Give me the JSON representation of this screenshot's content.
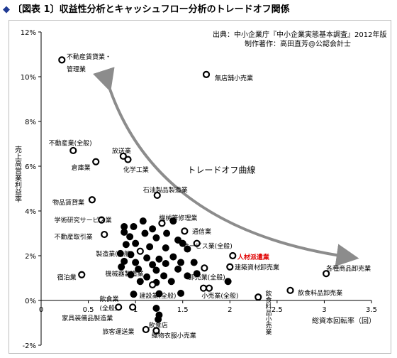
{
  "heading": {
    "marker": "◆",
    "text": "〔図表 1〕収益性分析とキャッシュフロー分析のトレードオフ関係"
  },
  "source": {
    "line1": "出典：中小企業庁『中小企業実態基本調査』2012年版",
    "line2": "制作著作：高田直芳@公認会計士"
  },
  "chart_data": {
    "type": "scatter",
    "title": "〔図表 1〕収益性分析とキャッシュフロー分析のトレードオフ関係",
    "xlabel": "総資本回転率（回）",
    "ylabel": "売上高営業利益率",
    "xlim": [
      0,
      3.5
    ],
    "ylim": [
      -2,
      12
    ],
    "xticks": [
      {
        "v": 0,
        "label": "0"
      },
      {
        "v": 0.5,
        "label": "0.5"
      },
      {
        "v": 1,
        "label": "1"
      },
      {
        "v": 1.5,
        "label": "1.5"
      },
      {
        "v": 2,
        "label": "2"
      },
      {
        "v": 2.5,
        "label": "2.5"
      },
      {
        "v": 3,
        "label": "3"
      },
      {
        "v": 3.5,
        "label": "3.5"
      }
    ],
    "yticks": [
      {
        "v": -2,
        "label": "-2%"
      },
      {
        "v": 0,
        "label": "0%"
      },
      {
        "v": 2,
        "label": "2%"
      },
      {
        "v": 4,
        "label": "4%"
      },
      {
        "v": 6,
        "label": "6%"
      },
      {
        "v": 8,
        "label": "8%"
      },
      {
        "v": 10,
        "label": "10%"
      },
      {
        "v": 12,
        "label": "12%"
      }
    ],
    "grid": false,
    "trend_label": "トレードオフ曲線",
    "trend_color": "#8c8c8c",
    "open_points": [
      {
        "x": 0.22,
        "y": 10.75
      },
      {
        "x": 1.75,
        "y": 10.1
      },
      {
        "x": 0.34,
        "y": 6.7
      },
      {
        "x": 0.58,
        "y": 6.2
      },
      {
        "x": 0.87,
        "y": 6.45
      },
      {
        "x": 0.92,
        "y": 6.3
      },
      {
        "x": 0.54,
        "y": 4.5
      },
      {
        "x": 1.23,
        "y": 4.7
      },
      {
        "x": 0.64,
        "y": 3.6
      },
      {
        "x": 1.28,
        "y": 3.45
      },
      {
        "x": 0.67,
        "y": 2.95
      },
      {
        "x": 1.52,
        "y": 3.1
      },
      {
        "x": 1.05,
        "y": 2.2
      },
      {
        "x": 1.65,
        "y": 2.55
      },
      {
        "x": 2.03,
        "y": 2.0
      },
      {
        "x": 0.43,
        "y": 1.15
      },
      {
        "x": 1.73,
        "y": 1.45
      },
      {
        "x": 2.0,
        "y": 1.5
      },
      {
        "x": 3.02,
        "y": 1.2
      },
      {
        "x": 1.18,
        "y": 0.7
      },
      {
        "x": 1.72,
        "y": 0.55
      },
      {
        "x": 1.78,
        "y": 0.55
      },
      {
        "x": 2.64,
        "y": 0.45
      },
      {
        "x": 2.3,
        "y": 0.15
      },
      {
        "x": 0.82,
        "y": -0.3
      },
      {
        "x": 0.97,
        "y": -0.3
      },
      {
        "x": 1.22,
        "y": -1.35
      },
      {
        "x": 1.11,
        "y": -1.3
      }
    ],
    "filled_points": [
      {
        "x": 1.08,
        "y": 3.55
      },
      {
        "x": 1.4,
        "y": 3.55
      },
      {
        "x": 0.88,
        "y": 3.3
      },
      {
        "x": 0.98,
        "y": 3.3
      },
      {
        "x": 1.18,
        "y": 3.2
      },
      {
        "x": 0.88,
        "y": 3.05
      },
      {
        "x": 1.1,
        "y": 3.0
      },
      {
        "x": 1.33,
        "y": 3.0
      },
      {
        "x": 0.94,
        "y": 2.85
      },
      {
        "x": 1.22,
        "y": 2.8
      },
      {
        "x": 1.45,
        "y": 2.7
      },
      {
        "x": 1.5,
        "y": 2.55
      },
      {
        "x": 0.9,
        "y": 2.5
      },
      {
        "x": 1.0,
        "y": 2.55
      },
      {
        "x": 1.15,
        "y": 2.4
      },
      {
        "x": 1.32,
        "y": 2.35
      },
      {
        "x": 1.55,
        "y": 2.3
      },
      {
        "x": 0.84,
        "y": 2.1
      },
      {
        "x": 0.95,
        "y": 2.05
      },
      {
        "x": 1.12,
        "y": 1.9
      },
      {
        "x": 1.25,
        "y": 1.85
      },
      {
        "x": 1.4,
        "y": 1.95
      },
      {
        "x": 0.88,
        "y": 1.75
      },
      {
        "x": 1.0,
        "y": 1.7
      },
      {
        "x": 1.18,
        "y": 1.6
      },
      {
        "x": 1.32,
        "y": 1.65
      },
      {
        "x": 1.48,
        "y": 1.7
      },
      {
        "x": 1.62,
        "y": 1.7
      },
      {
        "x": 0.85,
        "y": 1.5
      },
      {
        "x": 1.03,
        "y": 1.4
      },
      {
        "x": 1.22,
        "y": 1.35
      },
      {
        "x": 1.45,
        "y": 1.4
      },
      {
        "x": 0.95,
        "y": 1.15
      },
      {
        "x": 1.12,
        "y": 1.05
      },
      {
        "x": 1.3,
        "y": 1.1
      },
      {
        "x": 1.55,
        "y": 1.1
      },
      {
        "x": 1.65,
        "y": 1.2
      },
      {
        "x": 1.05,
        "y": 0.85
      },
      {
        "x": 1.22,
        "y": 0.8
      },
      {
        "x": 1.38,
        "y": 0.85
      },
      {
        "x": 1.98,
        "y": 0.85
      },
      {
        "x": 0.98,
        "y": 0.28
      },
      {
        "x": 1.25,
        "y": 0.3
      },
      {
        "x": 1.48,
        "y": 0.32
      },
      {
        "x": 1.22,
        "y": -0.35
      },
      {
        "x": 1.25,
        "y": -0.65
      },
      {
        "x": 1.24,
        "y": -0.85
      }
    ],
    "labels": [
      {
        "text": "不動産賃貸業・",
        "x": 0.27,
        "y": 10.9,
        "anchor": "start"
      },
      {
        "text": "管理業",
        "x": 0.27,
        "y": 10.35,
        "anchor": "start"
      },
      {
        "text": "無店舗小売業",
        "x": 1.84,
        "y": 9.95,
        "anchor": "start"
      },
      {
        "text": "不動産業(全般)",
        "x": 0.08,
        "y": 7.05,
        "anchor": "start"
      },
      {
        "text": "放送業",
        "x": 0.75,
        "y": 6.7,
        "anchor": "start"
      },
      {
        "text": "倉庫業",
        "x": 0.32,
        "y": 5.95,
        "anchor": "start"
      },
      {
        "text": "化学工業",
        "x": 0.87,
        "y": 5.85,
        "anchor": "start"
      },
      {
        "text": "石油製品製造業",
        "x": 1.08,
        "y": 4.95,
        "anchor": "start"
      },
      {
        "text": "物品賃貸業",
        "x": 0.12,
        "y": 4.4,
        "anchor": "start"
      },
      {
        "text": "学術研究サービス業",
        "x": 0.14,
        "y": 3.6,
        "anchor": "start"
      },
      {
        "text": "機械等修理業",
        "x": 1.25,
        "y": 3.7,
        "anchor": "start"
      },
      {
        "text": "通信業",
        "x": 1.6,
        "y": 3.1,
        "anchor": "start"
      },
      {
        "text": "不動産取引業",
        "x": 0.14,
        "y": 2.85,
        "anchor": "start"
      },
      {
        "text": "サービス業(全般)",
        "x": 1.5,
        "y": 2.45,
        "anchor": "start"
      },
      {
        "text": "製造業(全般)",
        "x": 0.58,
        "y": 2.1,
        "anchor": "start"
      },
      {
        "text": "人材派遣業",
        "x": 2.08,
        "y": 1.95,
        "anchor": "start",
        "color": "#e00000",
        "bold": true
      },
      {
        "text": "宿泊業",
        "x": 0.17,
        "y": 1.05,
        "anchor": "start"
      },
      {
        "text": "機械器製造業",
        "x": 0.68,
        "y": 1.2,
        "anchor": "start"
      },
      {
        "text": "建築資材卸売業",
        "x": 2.05,
        "y": 1.5,
        "anchor": "start"
      },
      {
        "text": "各種商品卸売業",
        "x": 3.02,
        "y": 1.45,
        "anchor": "start"
      },
      {
        "text": "卸売業(全般)",
        "x": 1.56,
        "y": 1.05,
        "anchor": "start"
      },
      {
        "text": "飲食料品卸売業",
        "x": 2.72,
        "y": 0.35,
        "anchor": "start"
      },
      {
        "text": "建設業(全般)",
        "x": 1.04,
        "y": 0.22,
        "anchor": "start"
      },
      {
        "text": "小売業(全般)",
        "x": 1.7,
        "y": 0.22,
        "anchor": "start"
      },
      {
        "text": "飲食業",
        "x": 0.62,
        "y": 0.08,
        "anchor": "start"
      },
      {
        "text": "(全般)",
        "x": 0.62,
        "y": -0.33,
        "anchor": "start"
      },
      {
        "text": "飲食店",
        "x": 1.14,
        "y": -1.1,
        "anchor": "start"
      },
      {
        "text": "家具装備品製造業",
        "x": 0.22,
        "y": -0.78,
        "anchor": "start"
      },
      {
        "text": "旅客運送業",
        "x": 0.65,
        "y": -1.38,
        "anchor": "start"
      },
      {
        "text": "織物衣服小売業",
        "x": 1.17,
        "y": -1.55,
        "anchor": "start"
      }
    ],
    "vertical_label": {
      "text": "飲食料品小売業",
      "x": 2.4,
      "y": 0.45
    }
  }
}
